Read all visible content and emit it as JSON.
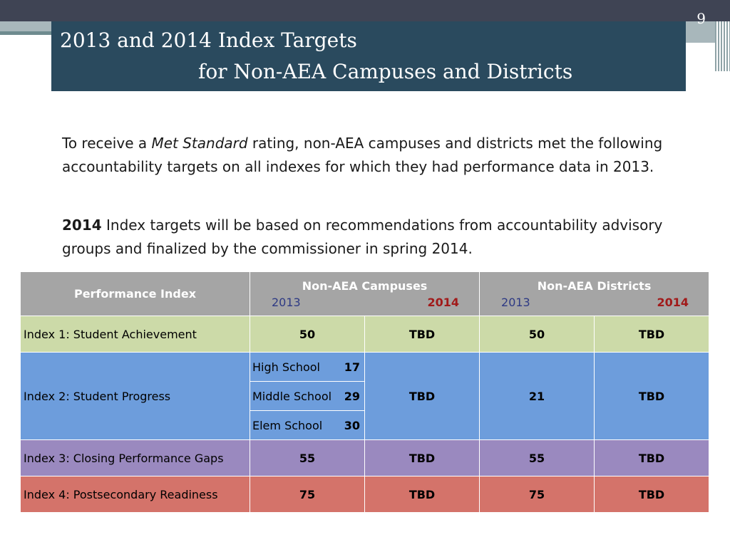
{
  "slide": {
    "number": "9",
    "title_line1": "2013 and 2014 Index Targets",
    "title_line2": "for Non-AEA Campuses and Districts"
  },
  "intro": {
    "p1_pre": "To receive a ",
    "p1_em": "Met Standard",
    "p1_post": " rating, non-AEA campuses and districts met the following accountability targets on all indexes for which they had performance data in 2013.",
    "p2_bold": "2014",
    "p2_rest": " Index targets will be based on recommendations from accountability advisory groups and finalized by the commissioner in spring 2014."
  },
  "table": {
    "header": {
      "performance_index": "Performance Index",
      "campuses": "Non-AEA Campuses",
      "districts": "Non-AEA Districts",
      "year_2013": "2013",
      "year_2014": "2014"
    },
    "rows": {
      "index1": {
        "label": "Index 1: Student Achievement",
        "c2013": "50",
        "c2014": "TBD",
        "d2013": "50",
        "d2014": "TBD"
      },
      "index2": {
        "label": "Index 2: Student Progress",
        "levels": [
          {
            "name": "High School",
            "value": "17"
          },
          {
            "name": "Middle School",
            "value": "29"
          },
          {
            "name": "Elem School",
            "value": "30"
          }
        ],
        "c2014": "TBD",
        "d2013": "21",
        "d2014": "TBD"
      },
      "index3": {
        "label": "Index 3: Closing Performance Gaps",
        "c2013": "55",
        "c2014": "TBD",
        "d2013": "55",
        "d2014": "TBD"
      },
      "index4": {
        "label": "Index 4: Postsecondary Readiness",
        "c2013": "75",
        "c2014": "TBD",
        "d2013": "75",
        "d2014": "TBD"
      }
    }
  },
  "colors": {
    "title_bg": "#2a4a5e",
    "header_bg": "#a5a5a5",
    "index1_bg": "#ccdaa8",
    "index2_bg": "#6d9ddc",
    "index3_bg": "#9a89bf",
    "index4_bg": "#d4736a"
  }
}
